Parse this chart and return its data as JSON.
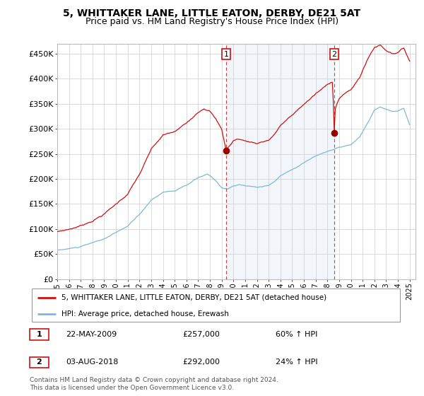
{
  "title": "5, WHITTAKER LANE, LITTLE EATON, DERBY, DE21 5AT",
  "subtitle": "Price paid vs. HM Land Registry's House Price Index (HPI)",
  "ylabel_ticks": [
    "£0",
    "£50K",
    "£100K",
    "£150K",
    "£200K",
    "£250K",
    "£300K",
    "£350K",
    "£400K",
    "£450K"
  ],
  "ytick_values": [
    0,
    50000,
    100000,
    150000,
    200000,
    250000,
    300000,
    350000,
    400000,
    450000
  ],
  "ylim": [
    0,
    470000
  ],
  "xlim_start": 1995.0,
  "xlim_end": 2025.5,
  "xtick_years": [
    1995,
    1996,
    1997,
    1998,
    1999,
    2000,
    2001,
    2002,
    2003,
    2004,
    2005,
    2006,
    2007,
    2008,
    2009,
    2010,
    2011,
    2012,
    2013,
    2014,
    2015,
    2016,
    2017,
    2018,
    2019,
    2020,
    2021,
    2022,
    2023,
    2024,
    2025
  ],
  "hpi_color": "#7fb8d8",
  "price_color": "#cc1111",
  "purchase1_x": 2009.385,
  "purchase1_y": 257000,
  "purchase2_x": 2018.583,
  "purchase2_y": 292000,
  "shade_color": "#ddeeff",
  "legend_label_red": "5, WHITTAKER LANE, LITTLE EATON, DERBY, DE21 5AT (detached house)",
  "legend_label_blue": "HPI: Average price, detached house, Erewash",
  "table_rows": [
    [
      "1",
      "22-MAY-2009",
      "£257,000",
      "60% ↑ HPI"
    ],
    [
      "2",
      "03-AUG-2018",
      "£292,000",
      "24% ↑ HPI"
    ]
  ],
  "footnote": "Contains HM Land Registry data © Crown copyright and database right 2024.\nThis data is licensed under the Open Government Licence v3.0."
}
